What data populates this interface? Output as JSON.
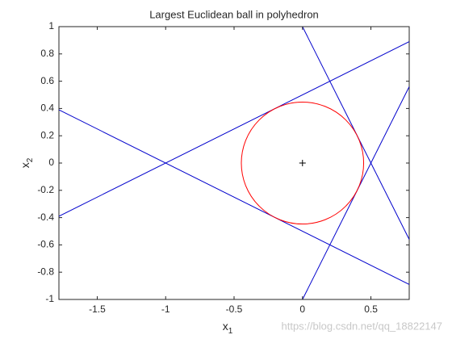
{
  "chart_data": {
    "type": "line",
    "title": "Largest Euclidean ball in polyhedron",
    "xlabel": [
      "x",
      "1"
    ],
    "ylabel": [
      "x",
      "2"
    ],
    "xlim": [
      -1.78,
      0.78
    ],
    "ylim": [
      -1,
      1
    ],
    "xticks": [
      -1.5,
      -1,
      -0.5,
      0,
      0.5
    ],
    "yticks": [
      -1,
      -0.8,
      -0.6,
      -0.4,
      -0.2,
      0,
      0.2,
      0.4,
      0.6,
      0.8,
      1
    ],
    "grid": false,
    "series": [
      {
        "color": "#0000cc",
        "x": [
          0,
          0.78
        ],
        "values": [
          1,
          -0.56
        ]
      },
      {
        "color": "#0000cc",
        "x": [
          0,
          0.78
        ],
        "values": [
          -1,
          0.56
        ]
      },
      {
        "color": "#0000cc",
        "x": [
          -1.78,
          0.78
        ],
        "values": [
          -0.39,
          0.89
        ]
      },
      {
        "color": "#0000cc",
        "x": [
          -1.78,
          0.78
        ],
        "values": [
          0.39,
          -0.89
        ]
      }
    ],
    "circle": {
      "center": [
        0,
        0
      ],
      "radius": 0.447,
      "color": "#ff0000"
    },
    "watermark": "https://blog.csdn.net/qq_18822147"
  }
}
